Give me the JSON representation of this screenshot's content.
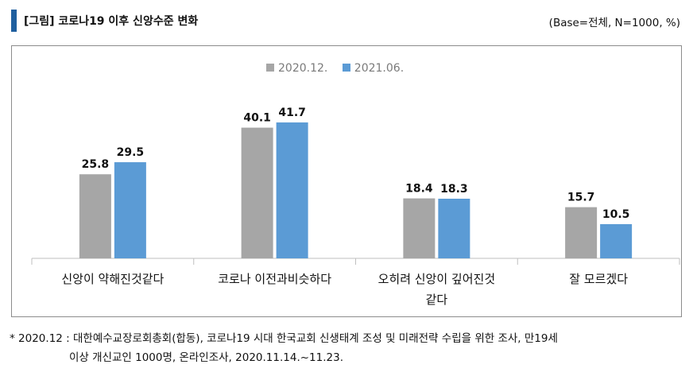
{
  "header": {
    "title": "[그림] 코로나19 이후 신앙수준 변화",
    "base_note": "(Base=전체, N=1000, %)"
  },
  "chart_data": {
    "type": "bar",
    "categories": [
      "신앙이 약해진것같다",
      "코로나 이전과비슷하다",
      "오히려 신앙이 깊어진것 같다",
      "잘 모르겠다"
    ],
    "category_lines": [
      [
        "신앙이 약해진것같다"
      ],
      [
        "코로나 이전과비슷하다"
      ],
      [
        "오히려 신앙이 깊어진것",
        "같다"
      ],
      [
        "잘 모르겠다"
      ]
    ],
    "series": [
      {
        "name": "2020.12.",
        "values": [
          25.8,
          40.1,
          18.4,
          15.7
        ],
        "color": "#a6a6a6"
      },
      {
        "name": "2021.06.",
        "values": [
          29.5,
          41.7,
          18.3,
          10.5
        ],
        "color": "#5b9bd5"
      }
    ],
    "ylim": [
      0,
      50
    ],
    "grid": false,
    "legend_position": "top-center",
    "title": "",
    "xlabel": "",
    "ylabel": ""
  },
  "footnote": {
    "line1": "* 2020.12 : 대한예수교장로회총회(합동), 코로나19 시대 한국교회 신생태계 조성 및 미래전략 수립을 위한 조사, 만19세",
    "line2": "이상 개신교인 1000명, 온라인조사, 2020.11.14.~11.23."
  }
}
